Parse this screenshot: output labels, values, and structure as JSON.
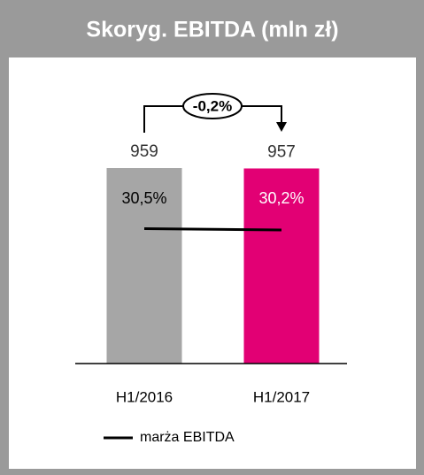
{
  "chart_data": {
    "type": "bar",
    "title": "Skoryg. EBITDA (mln zł)",
    "categories": [
      "H1/2016",
      "H1/2017"
    ],
    "series": [
      {
        "values": [
          959,
          957
        ],
        "colors": [
          "#a6a6a6",
          "#e20074"
        ]
      },
      {
        "name": "marża EBITDA",
        "color": "#000000",
        "values": [
          30.5,
          30.2
        ],
        "value_labels": [
          "30,5%",
          "30,2%"
        ]
      }
    ],
    "annotation": "-0,2%"
  }
}
